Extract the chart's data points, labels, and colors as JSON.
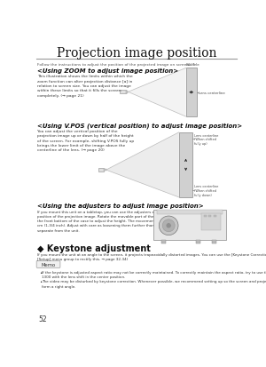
{
  "title": "Projection image position",
  "bg_color": "#ffffff",
  "title_fontsize": 10,
  "instruction": "Follow the instructions to adjust the position of the projected image on screen.",
  "section1_heading": "<Using ZOOM to adjust image position>",
  "section1_body": "This illustration shows the limits within which the\nzoom function can alter projection distance [a] in\nrelation to screen size. You can adjust the image\nwithin these limits so that it fills the screen\ncompletely. (→ page 21)",
  "section2_heading": "<Using V.POS (vertical position) to adjust image position>",
  "section2_body": "You can adjust the vertical position of the\nprojection image up or down by half of the height\nof the screen. For example, shifting V.POS fully up\nbrings the lower limit of the image above the\ncenterline of the lens. (→ page 20)",
  "section3_heading": "<Using the adjusters to adjust image position>",
  "section3_body": "If you mount this unit on a tabletop, you can use the adjusters on its underside to change the\nposition of the projection image. Rotate the movable part of the two screw-type adjusters at\nthe front bottom of the case to adjust the height. The movement range of the adjusters is 3\ncm (1-3/4 inch). Adjust with care as loosening them further than 1 cm may cause them to\nseparate from the unit.",
  "section4_heading": "◆ Keystone adjustment",
  "section4_body": "If you mount the unit at an angle to the screen, it projects trapezoidally distorted images. You can use the [Keystone Correction] item in the\n[Setup] menu group to rectify this. → page 32-34)",
  "memo_label": "Memo",
  "memo_bullet1": "If the keystone is adjusted aspect ratio may not be correctly maintained. To correctly maintain the aspect ratio, try to use the DPX-\n1300 with the lens shift in the center position.",
  "memo_bullet2": "The video may be disturbed by keystone correction. Whenever possible, we recommend setting up so the screen and projector\nform a right angle.",
  "page_number": "52"
}
